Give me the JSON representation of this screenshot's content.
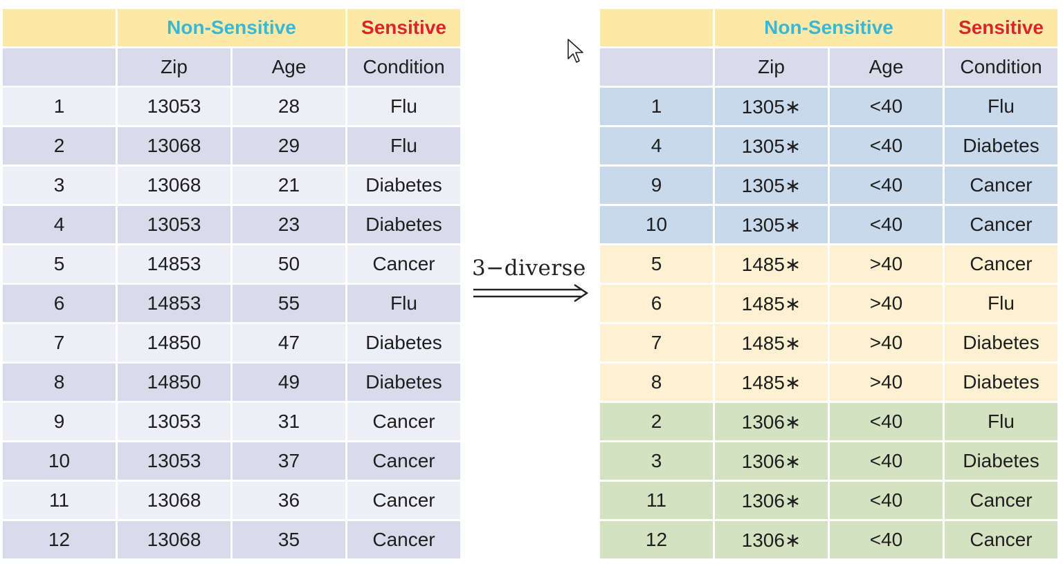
{
  "left_table": {
    "header_groups": {
      "non_sensitive": "Non-Sensitive",
      "sensitive": "Sensitive"
    },
    "columns": [
      "",
      "Zip",
      "Age",
      "Condition"
    ],
    "rows": [
      [
        "1",
        "13053",
        "28",
        "Flu"
      ],
      [
        "2",
        "13068",
        "29",
        "Flu"
      ],
      [
        "3",
        "13068",
        "21",
        "Diabetes"
      ],
      [
        "4",
        "13053",
        "23",
        "Diabetes"
      ],
      [
        "5",
        "14853",
        "50",
        "Cancer"
      ],
      [
        "6",
        "14853",
        "55",
        "Flu"
      ],
      [
        "7",
        "14850",
        "47",
        "Diabetes"
      ],
      [
        "8",
        "14850",
        "49",
        "Diabetes"
      ],
      [
        "9",
        "13053",
        "31",
        "Cancer"
      ],
      [
        "10",
        "13053",
        "37",
        "Cancer"
      ],
      [
        "11",
        "13068",
        "36",
        "Cancer"
      ],
      [
        "12",
        "13068",
        "35",
        "Cancer"
      ]
    ]
  },
  "transform_label": "3−diverse",
  "right_table": {
    "header_groups": {
      "non_sensitive": "Non-Sensitive",
      "sensitive": "Sensitive"
    },
    "columns": [
      "",
      "Zip",
      "Age",
      "Condition"
    ],
    "rows": [
      [
        "1",
        "1305∗",
        "<40",
        "Flu"
      ],
      [
        "4",
        "1305∗",
        "<40",
        "Diabetes"
      ],
      [
        "9",
        "1305∗",
        "<40",
        "Cancer"
      ],
      [
        "10",
        "1305∗",
        "<40",
        "Cancer"
      ],
      [
        "5",
        "1485∗",
        ">40",
        "Cancer"
      ],
      [
        "6",
        "1485∗",
        ">40",
        "Flu"
      ],
      [
        "7",
        "1485∗",
        ">40",
        "Diabetes"
      ],
      [
        "8",
        "1485∗",
        ">40",
        "Diabetes"
      ],
      [
        "2",
        "1306∗",
        "<40",
        "Flu"
      ],
      [
        "3",
        "1306∗",
        "<40",
        "Diabetes"
      ],
      [
        "11",
        "1306∗",
        "<40",
        "Cancer"
      ],
      [
        "12",
        "1306∗",
        "<40",
        "Cancer"
      ]
    ]
  },
  "colors": {
    "header_band": "#fce9a8",
    "non_sensitive_text": "#3bb6d4",
    "sensitive_text": "#d8262a",
    "group_1305": "#c9d9ec",
    "group_1485": "#fdf1d2",
    "group_1306": "#d3e3c2"
  },
  "icons": {
    "cursor": "mouse-pointer-icon",
    "arrow": "double-right-arrow-icon"
  }
}
